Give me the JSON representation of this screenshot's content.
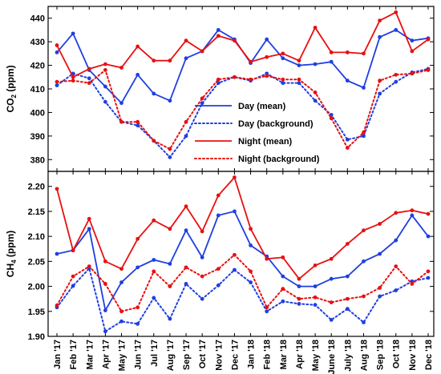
{
  "chart_data": [
    {
      "type": "line",
      "ylabel": "CO2 (ppm)",
      "ylabel_main": "CO",
      "ylabel_sub": "2",
      "ylabel_unit": " (ppm)",
      "ylim": [
        375,
        445
      ],
      "yticks": [
        380,
        390,
        400,
        410,
        420,
        430,
        440
      ],
      "categories": [
        "Jan '17",
        "Feb '17",
        "Mar '17",
        "Apr '17",
        "May '17",
        "Jun '17",
        "Jul '17",
        "Aug '17",
        "Sep '17",
        "Oct '17",
        "Nov '17",
        "Dec '17",
        "Jan '18",
        "Feb '18",
        "Mar '18",
        "Apr '18",
        "May '18",
        "June '18",
        "July '18",
        "Aug '18",
        "Sep '18",
        "Oct '18",
        "Nov '18",
        "Dec '18"
      ],
      "legend_position": "center",
      "series": [
        {
          "name": "Day (mean)",
          "color": "#1f3fe0",
          "style": "solid",
          "values": [
            425.5,
            433.5,
            418,
            411,
            404,
            416,
            408,
            405,
            423,
            426,
            435,
            431,
            421,
            431,
            423,
            420,
            420.5,
            421.5,
            413.5,
            410.5,
            432,
            435,
            430.5,
            431.5
          ]
        },
        {
          "name": "Day (background)",
          "color": "#1f3fe0",
          "style": "dotted",
          "values": [
            411.5,
            416.5,
            414.5,
            404.5,
            396,
            394.5,
            388,
            381,
            390,
            404,
            412.5,
            415,
            413.5,
            416.5,
            412.5,
            412.5,
            405,
            399,
            388.5,
            390,
            408,
            413,
            417,
            418.5
          ]
        },
        {
          "name": "Night (mean)",
          "color": "#e81010",
          "style": "solid",
          "values": [
            428.5,
            415,
            418.5,
            420.5,
            419,
            428,
            422,
            422,
            430.5,
            426,
            432.5,
            430.5,
            421.5,
            423.5,
            425,
            422,
            436,
            425.5,
            425.5,
            425,
            439,
            442.5,
            426,
            431
          ]
        },
        {
          "name": "Night (background)",
          "color": "#e81010",
          "style": "dotted",
          "values": [
            413,
            413.5,
            412.5,
            418,
            396,
            396,
            388,
            384.5,
            396,
            406,
            414,
            415,
            414,
            415.5,
            414,
            414,
            408.5,
            397.5,
            385,
            391.5,
            413.5,
            416,
            416.5,
            418
          ]
        }
      ]
    },
    {
      "type": "line",
      "ylabel": "CH4 (ppm)",
      "ylabel_main": "CH",
      "ylabel_sub": "4",
      "ylabel_unit": " (ppm)",
      "ylim": [
        1.9,
        2.23
      ],
      "yticks": [
        "1.90",
        "1.95",
        "2.00",
        "2.05",
        "2.10",
        "2.15",
        "2.20"
      ],
      "categories": [
        "Jan '17",
        "Feb '17",
        "Mar '17",
        "Apr '17",
        "May '17",
        "Jun '17",
        "Jul '17",
        "Aug '17",
        "Sep '17",
        "Oct '17",
        "Nov '17",
        "Dec '17",
        "Jan '18",
        "Feb '18",
        "Mar '18",
        "Apr '18",
        "May '18",
        "June '18",
        "July '18",
        "Aug '18",
        "Sep '18",
        "Oct '18",
        "Nov '18",
        "Dec '18"
      ],
      "series": [
        {
          "name": "Day (mean)",
          "color": "#1f3fe0",
          "style": "solid",
          "values": [
            2.065,
            2.072,
            2.115,
            1.952,
            2.008,
            2.038,
            2.053,
            2.045,
            2.112,
            2.058,
            2.142,
            2.15,
            2.082,
            2.06,
            2.02,
            2.0,
            2.0,
            2.015,
            2.02,
            2.05,
            2.065,
            2.092,
            2.142,
            2.1
          ]
        },
        {
          "name": "Day (background)",
          "color": "#1f3fe0",
          "style": "dotted",
          "values": [
            1.958,
            2.001,
            2.036,
            1.91,
            1.93,
            1.925,
            1.977,
            1.935,
            2.005,
            1.975,
            2.002,
            2.033,
            2.008,
            1.95,
            1.97,
            1.965,
            1.963,
            1.933,
            1.955,
            1.928,
            1.98,
            1.992,
            2.01,
            2.017
          ]
        },
        {
          "name": "Night (mean)",
          "color": "#e81010",
          "style": "solid",
          "values": [
            2.195,
            2.072,
            2.135,
            2.05,
            2.035,
            2.095,
            2.132,
            2.115,
            2.16,
            2.11,
            2.182,
            2.218,
            2.115,
            2.055,
            2.058,
            2.015,
            2.042,
            2.055,
            2.085,
            2.112,
            2.125,
            2.147,
            2.152,
            2.145
          ]
        },
        {
          "name": "Night (background)",
          "color": "#e81010",
          "style": "dotted",
          "values": [
            1.962,
            2.02,
            2.04,
            2.005,
            1.95,
            1.958,
            2.03,
            2.0,
            2.038,
            2.02,
            2.035,
            2.063,
            2.03,
            1.958,
            1.995,
            1.975,
            1.978,
            1.968,
            1.975,
            1.98,
            1.997,
            2.04,
            2.005,
            2.03
          ]
        }
      ]
    }
  ]
}
